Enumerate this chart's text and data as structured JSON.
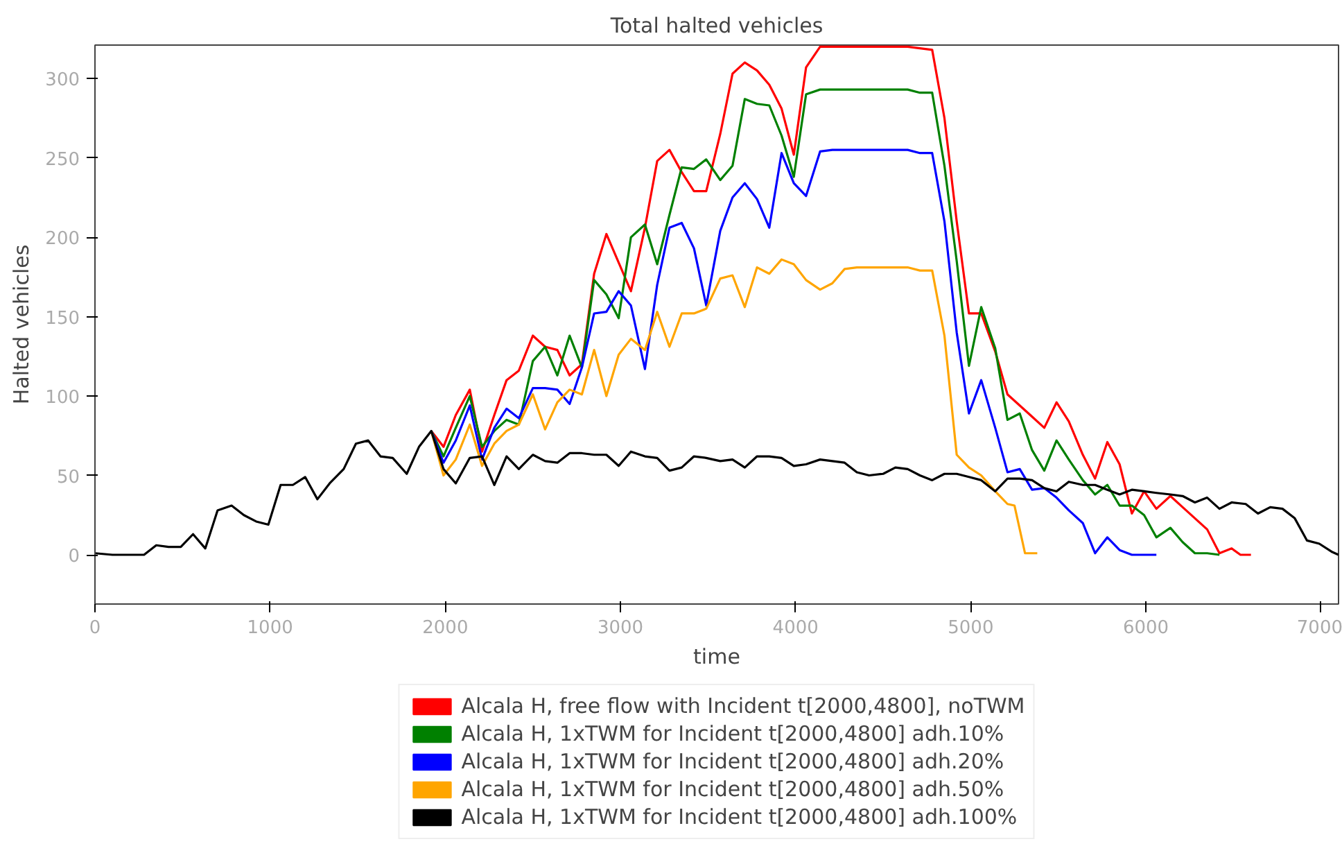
{
  "chart_data": {
    "type": "line",
    "title": "Total halted vehicles",
    "xlabel": "time",
    "ylabel": "Halted vehicles",
    "xlim": [
      0,
      7100
    ],
    "ylim": [
      -31,
      321
    ],
    "xticks": [
      0,
      1000,
      2000,
      3000,
      4000,
      5000,
      6000,
      7000
    ],
    "yticks": [
      0,
      50,
      100,
      150,
      200,
      250,
      300
    ],
    "grid": false,
    "legend": "bottom",
    "line_style": "solid",
    "marker": "none",
    "series": [
      {
        "name": "Alcala H, free flow with Incident t[2000,4800], noTWM",
        "color": "#ff0000",
        "x": [
          1920,
          1990,
          2060,
          2140,
          2210,
          2280,
          2350,
          2420,
          2500,
          2570,
          2640,
          2710,
          2780,
          2850,
          2920,
          2990,
          3060,
          3140,
          3210,
          3280,
          3350,
          3420,
          3490,
          3570,
          3640,
          3710,
          3780,
          3850,
          3920,
          3990,
          4060,
          4140,
          4210,
          4640,
          4710,
          4780,
          4850,
          4920,
          4990,
          5060,
          5140,
          5210,
          5280,
          5350,
          5420,
          5490,
          5560,
          5640,
          5710,
          5780,
          5850,
          5920,
          5990,
          6060,
          6140,
          6210,
          6280,
          6350,
          6420,
          6490,
          6540,
          6600
        ],
        "values": [
          78,
          68,
          88,
          104,
          65,
          88,
          110,
          116,
          138,
          131,
          129,
          113,
          120,
          177,
          202,
          184,
          166,
          206,
          248,
          255,
          241,
          229,
          229,
          265,
          303,
          310,
          305,
          296,
          281,
          252,
          307,
          320,
          320,
          320,
          319,
          318,
          275,
          210,
          152,
          152,
          128,
          101,
          94,
          87,
          80,
          96,
          84,
          63,
          48,
          71,
          57,
          26,
          40,
          29,
          37,
          30,
          23,
          16,
          1,
          4,
          0,
          0
        ]
      },
      {
        "name": "Alcala H, 1xTWM for Incident t[2000,4800] adh.10%",
        "color": "#008000",
        "x": [
          1920,
          1990,
          2060,
          2140,
          2210,
          2280,
          2350,
          2420,
          2500,
          2570,
          2640,
          2710,
          2780,
          2850,
          2920,
          2990,
          3060,
          3140,
          3210,
          3280,
          3350,
          3420,
          3490,
          3570,
          3640,
          3710,
          3780,
          3850,
          3920,
          3990,
          4060,
          4140,
          4640,
          4710,
          4780,
          4850,
          4920,
          4990,
          5060,
          5140,
          5210,
          5280,
          5350,
          5420,
          5490,
          5560,
          5640,
          5710,
          5780,
          5850,
          5920,
          5990,
          6060,
          6140,
          6210,
          6280,
          6350,
          6420
        ],
        "values": [
          78,
          62,
          80,
          100,
          68,
          78,
          85,
          82,
          122,
          131,
          113,
          138,
          118,
          173,
          164,
          149,
          200,
          208,
          183,
          214,
          244,
          243,
          249,
          236,
          245,
          287,
          284,
          283,
          264,
          238,
          290,
          293,
          293,
          291,
          291,
          245,
          185,
          119,
          156,
          130,
          85,
          89,
          66,
          53,
          72,
          60,
          47,
          38,
          44,
          31,
          31,
          25,
          11,
          17,
          8,
          1,
          1,
          0
        ]
      },
      {
        "name": "Alcala H, 1xTWM for Incident t[2000,4800] adh.20%",
        "color": "#0000ff",
        "x": [
          1920,
          1990,
          2060,
          2140,
          2210,
          2280,
          2350,
          2420,
          2500,
          2570,
          2640,
          2710,
          2780,
          2850,
          2920,
          2990,
          3060,
          3140,
          3210,
          3280,
          3350,
          3420,
          3490,
          3570,
          3640,
          3710,
          3780,
          3850,
          3920,
          3990,
          4060,
          4140,
          4210,
          4640,
          4710,
          4780,
          4850,
          4920,
          4990,
          5060,
          5140,
          5210,
          5280,
          5350,
          5420,
          5490,
          5560,
          5640,
          5710,
          5780,
          5850,
          5920,
          5990,
          6060
        ],
        "values": [
          78,
          58,
          72,
          94,
          60,
          80,
          92,
          86,
          105,
          105,
          104,
          95,
          118,
          152,
          153,
          166,
          157,
          117,
          170,
          206,
          209,
          193,
          157,
          204,
          225,
          234,
          224,
          206,
          253,
          234,
          226,
          254,
          255,
          255,
          253,
          253,
          210,
          140,
          89,
          110,
          80,
          52,
          54,
          41,
          42,
          36,
          28,
          20,
          1,
          11,
          3,
          0,
          0,
          0
        ]
      },
      {
        "name": "Alcala H, 1xTWM for Incident t[2000,4800] adh.50%",
        "color": "#ffa500",
        "x": [
          1920,
          1990,
          2060,
          2140,
          2210,
          2280,
          2350,
          2420,
          2500,
          2570,
          2640,
          2710,
          2780,
          2850,
          2920,
          2990,
          3060,
          3140,
          3210,
          3280,
          3350,
          3420,
          3490,
          3570,
          3640,
          3710,
          3780,
          3850,
          3920,
          3990,
          4060,
          4140,
          4210,
          4280,
          4350,
          4640,
          4710,
          4780,
          4850,
          4920,
          4990,
          5060,
          5140,
          5210,
          5250,
          5310,
          5380
        ],
        "values": [
          78,
          50,
          60,
          82,
          56,
          70,
          78,
          82,
          101,
          79,
          96,
          104,
          101,
          129,
          100,
          126,
          136,
          129,
          153,
          131,
          152,
          152,
          155,
          174,
          176,
          156,
          181,
          177,
          186,
          183,
          173,
          167,
          171,
          180,
          181,
          181,
          179,
          179,
          138,
          63,
          55,
          50,
          40,
          32,
          31,
          1,
          1
        ]
      },
      {
        "name": "Alcala H, 1xTWM for Incident t[2000,4800] adh.100%",
        "color": "#000000",
        "x": [
          0,
          100,
          200,
          280,
          350,
          420,
          490,
          560,
          630,
          700,
          780,
          850,
          920,
          990,
          1060,
          1130,
          1200,
          1270,
          1340,
          1420,
          1490,
          1560,
          1630,
          1700,
          1780,
          1850,
          1920,
          1990,
          2060,
          2140,
          2210,
          2280,
          2350,
          2420,
          2500,
          2570,
          2640,
          2710,
          2780,
          2850,
          2920,
          2990,
          3060,
          3140,
          3210,
          3280,
          3350,
          3420,
          3490,
          3570,
          3640,
          3710,
          3780,
          3850,
          3920,
          3990,
          4060,
          4140,
          4210,
          4280,
          4350,
          4420,
          4500,
          4570,
          4640,
          4710,
          4780,
          4850,
          4920,
          4990,
          5060,
          5140,
          5210,
          5280,
          5350,
          5420,
          5490,
          5560,
          5640,
          5710,
          5780,
          5850,
          5920,
          5990,
          6060,
          6140,
          6210,
          6280,
          6350,
          6420,
          6490,
          6570,
          6640,
          6710,
          6780,
          6850,
          6920,
          6990,
          7060,
          7100
        ],
        "values": [
          1,
          0,
          0,
          0,
          6,
          5,
          5,
          13,
          4,
          28,
          31,
          25,
          21,
          19,
          44,
          44,
          49,
          35,
          45,
          54,
          70,
          72,
          62,
          61,
          51,
          68,
          78,
          54,
          45,
          61,
          62,
          44,
          62,
          54,
          63,
          59,
          58,
          64,
          64,
          63,
          63,
          56,
          65,
          62,
          61,
          53,
          55,
          62,
          61,
          59,
          60,
          55,
          62,
          62,
          61,
          56,
          57,
          60,
          59,
          58,
          52,
          50,
          51,
          55,
          54,
          50,
          47,
          51,
          51,
          49,
          47,
          40,
          48,
          48,
          47,
          42,
          40,
          46,
          44,
          44,
          41,
          38,
          41,
          40,
          39,
          38,
          37,
          33,
          36,
          29,
          33,
          32,
          26,
          30,
          29,
          23,
          9,
          7,
          2,
          0
        ]
      }
    ]
  }
}
